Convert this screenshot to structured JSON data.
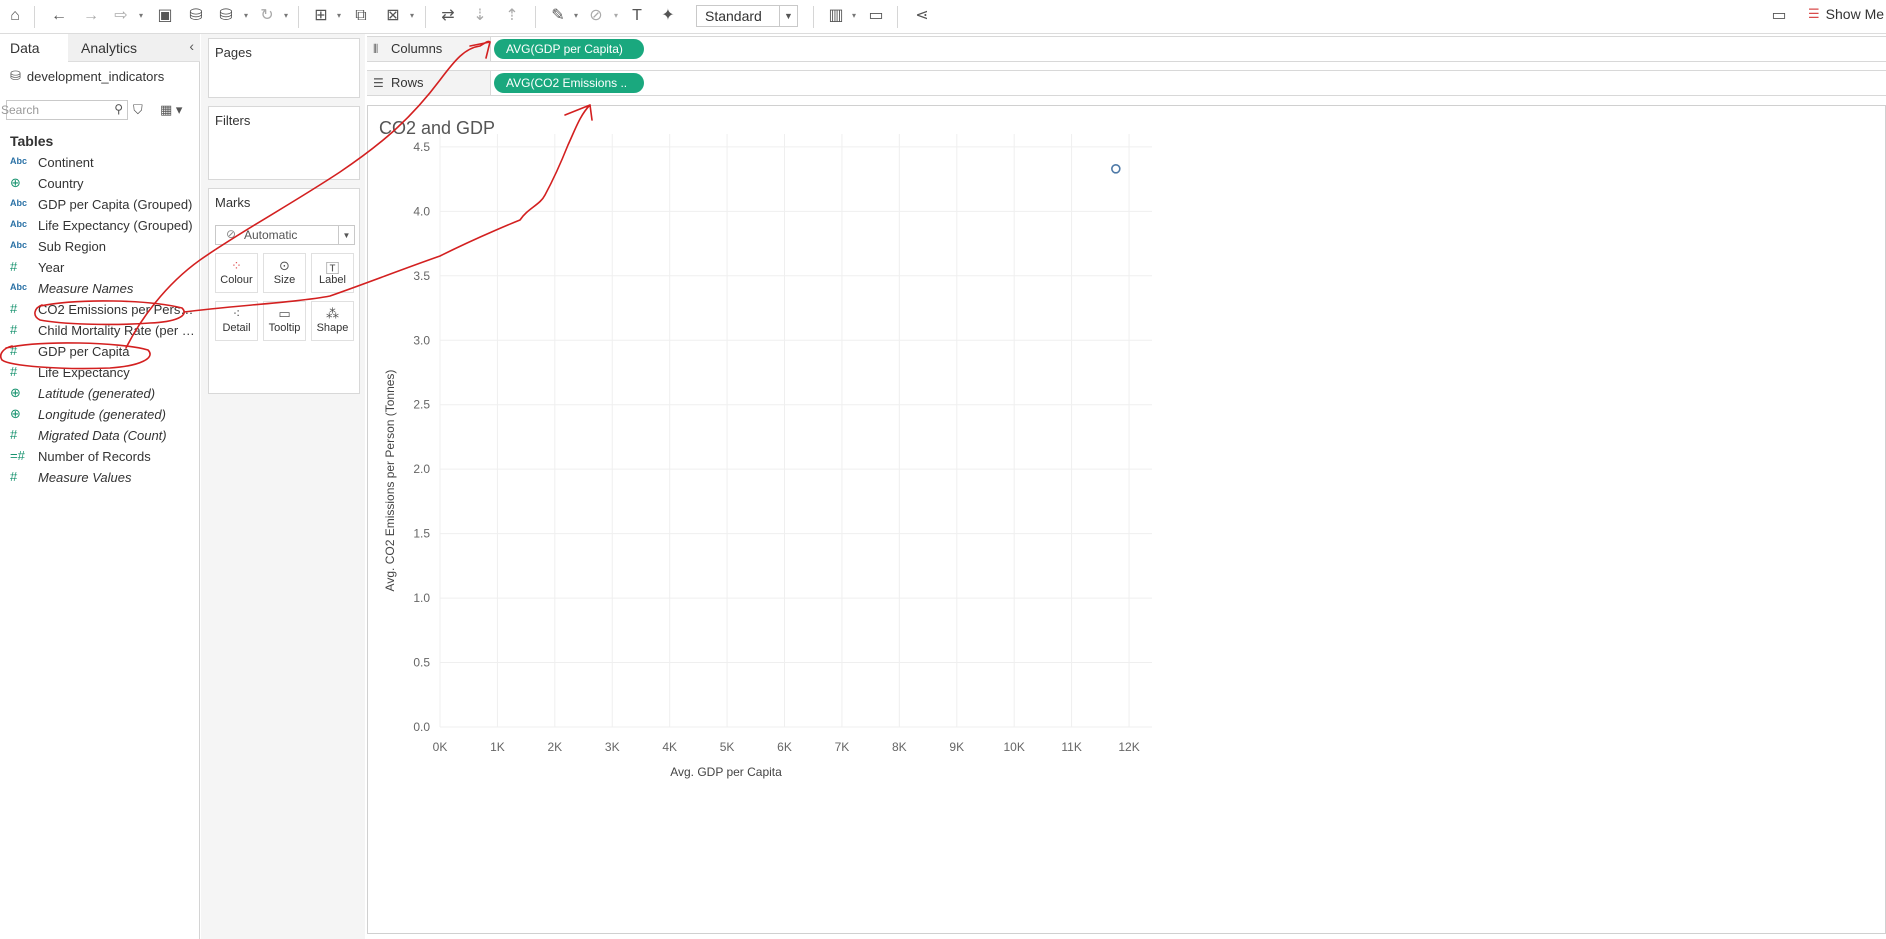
{
  "toolbar": {
    "icons": [
      "home-icon",
      "undo-icon",
      "redo-icon",
      "replay-icon",
      "save-icon",
      "new-datasource-icon",
      "pause-datasource-icon",
      "refresh-icon",
      "new-worksheet-icon",
      "duplicate-icon",
      "clear-icon",
      "swap-icon",
      "sort-asc-icon",
      "sort-desc-icon",
      "highlight-icon",
      "group-icon",
      "label-icon",
      "pin-icon",
      "chart-type-icon",
      "presentation-icon",
      "share-icon",
      "tooltip-icon"
    ],
    "fit_select": "Standard",
    "show_me_label": "Show Me"
  },
  "data_pane": {
    "tab_data": "Data",
    "tab_analytics": "Analytics",
    "datasource": "development_indicators",
    "search_placeholder": "Search",
    "tables_heading": "Tables",
    "fields": [
      {
        "type": "Abc",
        "name": "Continent",
        "kind": "dim",
        "italic": false
      },
      {
        "type": "geo",
        "name": "Country",
        "kind": "geo",
        "italic": false
      },
      {
        "type": "Abc",
        "name": "GDP per Capita (Grouped)",
        "kind": "dim",
        "italic": false
      },
      {
        "type": "Abc",
        "name": "Life Expectancy (Grouped)",
        "kind": "dim",
        "italic": false
      },
      {
        "type": "Abc",
        "name": "Sub Region",
        "kind": "dim",
        "italic": false
      },
      {
        "type": "#",
        "name": "Year",
        "kind": "measure",
        "italic": false
      },
      {
        "type": "Abc",
        "name": "Measure Names",
        "kind": "dim",
        "italic": true
      },
      {
        "type": "#",
        "name": "CO2 Emissions per Person (Tonnes)",
        "kind": "measure",
        "italic": false
      },
      {
        "type": "#",
        "name": "Child Mortality Rate (per 1...",
        "kind": "measure",
        "italic": false
      },
      {
        "type": "#",
        "name": "GDP per Capita",
        "kind": "measure",
        "italic": false
      },
      {
        "type": "#",
        "name": "Life Expectancy",
        "kind": "measure",
        "italic": false
      },
      {
        "type": "geo",
        "name": "Latitude (generated)",
        "kind": "geo",
        "italic": true
      },
      {
        "type": "geo",
        "name": "Longitude (generated)",
        "kind": "geo",
        "italic": true
      },
      {
        "type": "#",
        "name": "Migrated Data (Count)",
        "kind": "measure",
        "italic": true
      },
      {
        "type": "=#",
        "name": "Number of Records",
        "kind": "measure",
        "italic": false
      },
      {
        "type": "#",
        "name": "Measure Values",
        "kind": "measure",
        "italic": true
      }
    ]
  },
  "cards": {
    "pages": "Pages",
    "filters": "Filters",
    "marks": "Marks",
    "mark_type": "Automatic",
    "mark_buttons": [
      "Colour",
      "Size",
      "Label",
      "Detail",
      "Tooltip",
      "Shape"
    ]
  },
  "shelves": {
    "columns_label": "Columns",
    "columns_pill": "AVG(GDP per Capita)",
    "rows_label": "Rows",
    "rows_pill": "AVG(CO2 Emissions .."
  },
  "sheet": {
    "title": "CO2 and GDP"
  },
  "chart_data": {
    "type": "scatter",
    "title": "CO2 and GDP",
    "xlabel": "Avg. GDP per Capita",
    "ylabel": "Avg. CO2 Emissions per Person (Tonnes)",
    "x_ticks": [
      "0K",
      "1K",
      "2K",
      "3K",
      "4K",
      "5K",
      "6K",
      "7K",
      "8K",
      "9K",
      "10K",
      "11K",
      "12K"
    ],
    "y_ticks": [
      "0.0",
      "0.5",
      "1.0",
      "1.5",
      "2.0",
      "2.5",
      "3.0",
      "3.5",
      "4.0",
      "4.5"
    ],
    "xlim": [
      0,
      12400
    ],
    "ylim": [
      0,
      4.6
    ],
    "points": [
      {
        "x": 11770,
        "y": 4.33
      }
    ],
    "mark_color": "#4e79a7",
    "grid": true
  }
}
